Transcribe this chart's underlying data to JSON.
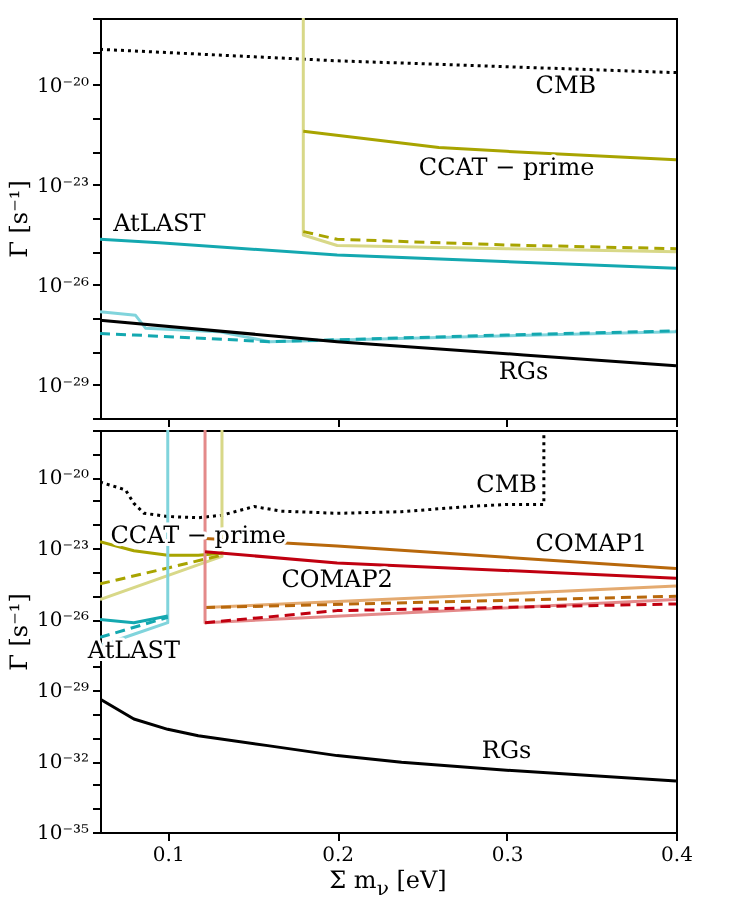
{
  "chart_data": [
    {
      "type": "line",
      "ylabel": "Γ [s⁻¹]",
      "xlim": [
        0.06,
        0.4
      ],
      "xticks": [
        0.1,
        0.2,
        0.3,
        0.4
      ],
      "ylim": [
        1e-30,
        1e-18
      ],
      "log": "y",
      "tick_labels": "y",
      "yticks": [
        {
          "value": 1e-30,
          "label": null
        },
        {
          "value": 1e-29,
          "label": "10⁻²⁹"
        },
        {
          "value": 1e-28,
          "label": null
        },
        {
          "value": 1e-27,
          "label": null
        },
        {
          "value": 1e-26,
          "label": "10⁻²⁶"
        },
        {
          "value": 1e-25,
          "label": null
        },
        {
          "value": 1e-24,
          "label": null
        },
        {
          "value": 1e-23,
          "label": "10⁻²³"
        },
        {
          "value": 1e-22,
          "label": null
        },
        {
          "value": 1e-21,
          "label": null
        },
        {
          "value": 1e-20,
          "label": "10⁻²⁰"
        },
        {
          "value": 1e-19,
          "label": null
        },
        {
          "value": 1e-18,
          "label": null
        }
      ],
      "series": [
        {
          "color": "#000000",
          "line_style": "dotted",
          "x": [
            0.06,
            0.2,
            0.335,
            0.4
          ],
          "values": [
            1.15e-19,
            5.2e-20,
            3e-20,
            2.3e-20
          ]
        },
        {
          "color": "#d8d888",
          "line_style": "solid",
          "x": [
            0.18,
            0.18,
            0.2,
            0.3,
            0.4
          ],
          "values": [
            1e-18,
            3.1e-25,
            1.5e-25,
            1.2e-25,
            9.8e-26
          ]
        },
        {
          "color": "#a8a400",
          "line_style": "dashed",
          "x": [
            0.18,
            0.2,
            0.3,
            0.4
          ],
          "values": [
            3.9e-25,
            2.3e-25,
            1.55e-25,
            1.2e-25
          ]
        },
        {
          "color": "#a8a400",
          "line_style": "solid",
          "x": [
            0.18,
            0.26,
            0.3,
            0.4
          ],
          "values": [
            4e-22,
            1.3e-22,
            1e-22,
            5.6e-23
          ]
        },
        {
          "color": "#80d4dc",
          "line_style": "solid",
          "x": [
            0.06,
            0.081,
            0.087,
            0.13,
            0.16,
            0.4
          ],
          "values": [
            1.55e-27,
            1.2e-27,
            4.9e-28,
            3.9e-28,
            1.95e-28,
            3.9e-28
          ]
        },
        {
          "color": "#14a8b0",
          "line_style": "dashed",
          "x": [
            0.06,
            0.08,
            0.16,
            0.3,
            0.4
          ],
          "values": [
            3.4e-28,
            3.1e-28,
            1.95e-28,
            3.1e-28,
            4.1e-28
          ]
        },
        {
          "color": "#14a8b0",
          "line_style": "solid",
          "x": [
            0.06,
            0.095,
            0.2,
            0.4
          ],
          "values": [
            2.3e-25,
            1.8e-25,
            7.8e-26,
            3.1e-26
          ]
        },
        {
          "color": "#000000",
          "line_style": "solid",
          "x": [
            0.06,
            0.2,
            0.31,
            0.4
          ],
          "values": [
            8.5e-28,
            1.95e-28,
            7.8e-29,
            3.7e-29
          ]
        }
      ],
      "annotations": [
        {
          "text": "CMB",
          "x": 0.335,
          "y": 3e-20
        },
        {
          "text": "CCAT − prime",
          "x": 0.3,
          "y": 1e-22
        },
        {
          "text": "AtLAST",
          "x": 0.095,
          "y": 1.8e-25
        },
        {
          "text": "RGs",
          "x": 0.31,
          "y": 7.8e-29
        }
      ]
    },
    {
      "type": "line",
      "xlabel": "Σ m$_{ν}$ [eV]",
      "ylabel": "Γ [s⁻¹]",
      "xlim": [
        0.06,
        0.4
      ],
      "xticks": [
        0.1,
        0.2,
        0.3,
        0.4
      ],
      "ylim": [
        1e-35,
        1e-18
      ],
      "log": "y",
      "yticks": [
        {
          "value": 1e-35,
          "label": "10⁻³⁵"
        },
        {
          "value": 1e-34,
          "label": null
        },
        {
          "value": 1e-33,
          "label": null
        },
        {
          "value": 1e-32,
          "label": "10⁻³²"
        },
        {
          "value": 1e-31,
          "label": null
        },
        {
          "value": 1e-30,
          "label": null
        },
        {
          "value": 1e-29,
          "label": "10⁻²⁹"
        },
        {
          "value": 1e-28,
          "label": null
        },
        {
          "value": 1e-27,
          "label": null
        },
        {
          "value": 1e-26,
          "label": "10⁻²⁶"
        },
        {
          "value": 1e-25,
          "label": null
        },
        {
          "value": 1e-24,
          "label": null
        },
        {
          "value": 1e-23,
          "label": "10⁻²³"
        },
        {
          "value": 1e-22,
          "label": null
        },
        {
          "value": 1e-21,
          "label": null
        },
        {
          "value": 1e-20,
          "label": "10⁻²⁰"
        },
        {
          "value": 1e-19,
          "label": null
        },
        {
          "value": 1e-18,
          "label": null
        }
      ],
      "series": [
        {
          "color": "#000000",
          "line_style": "dotted",
          "x": [
            0.06,
            0.075,
            0.08,
            0.086,
            0.1,
            0.118,
            0.132,
            0.151,
            0.167,
            0.2,
            0.238,
            0.277,
            0.3,
            0.322,
            0.322
          ],
          "values": [
            6.3e-21,
            2.95e-21,
            7.9e-22,
            3e-22,
            2.2e-22,
            1.95e-22,
            2.5e-22,
            5.8e-22,
            3.7e-22,
            3e-22,
            3.5e-22,
            5.8e-22,
            7.1e-22,
            7.1e-22,
            1e-18
          ]
        },
        {
          "color": "#d8d888",
          "line_style": "solid",
          "x": [
            0.06,
            0.132,
            0.132
          ],
          "values": [
            6.8e-26,
            4.5e-24,
            1e-18
          ]
        },
        {
          "color": "#a8a400",
          "line_style": "dashed",
          "x": [
            0.06,
            0.132
          ],
          "values": [
            3.1e-25,
            5.1e-24
          ]
        },
        {
          "color": "#a8a400",
          "line_style": "solid",
          "x": [
            0.06,
            0.08,
            0.1,
            0.118,
            0.132
          ],
          "values": [
            1.9e-23,
            7.8e-24,
            5.1e-24,
            5.1e-24,
            6.2e-24
          ]
        },
        {
          "color": "#80d4dc",
          "line_style": "solid",
          "x": [
            0.06,
            0.08,
            0.1,
            0.1
          ],
          "values": [
            7.4e-28,
            2.3e-27,
            7.1e-27,
            1e-18
          ]
        },
        {
          "color": "#14a8b0",
          "line_style": "dashed",
          "x": [
            0.06,
            0.1
          ],
          "values": [
            1.7e-27,
            1.2e-26
          ]
        },
        {
          "color": "#14a8b0",
          "line_style": "solid",
          "x": [
            0.06,
            0.08,
            0.1
          ],
          "values": [
            9.8e-27,
            7.1e-27,
            1.35e-26
          ]
        },
        {
          "color": "#e4aa70",
          "line_style": "solid",
          "x": [
            0.122,
            0.4
          ],
          "values": [
            3.1e-26,
            2.5e-25
          ]
        },
        {
          "color": "#b8680c",
          "line_style": "dashed",
          "x": [
            0.122,
            0.4
          ],
          "values": [
            3.1e-26,
            9.3e-26
          ]
        },
        {
          "color": "#b8680c",
          "line_style": "solid",
          "x": [
            0.122,
            0.2,
            0.35,
            0.4
          ],
          "values": [
            2.6e-23,
            1.23e-23,
            2.4e-24,
            1.4e-24
          ]
        },
        {
          "color": "#e48a8a",
          "line_style": "solid",
          "x": [
            0.122,
            0.122,
            0.4
          ],
          "values": [
            1e-18,
            7.1e-27,
            6.8e-26
          ]
        },
        {
          "color": "#c00010",
          "line_style": "dashed",
          "x": [
            0.122,
            0.2,
            0.4
          ],
          "values": [
            7.1e-27,
            2.3e-26,
            4.4e-26
          ]
        },
        {
          "color": "#c00010",
          "line_style": "solid",
          "x": [
            0.122,
            0.2,
            0.4
          ],
          "values": [
            7.1e-24,
            2.4e-24,
            5.4e-25
          ]
        },
        {
          "color": "#000000",
          "line_style": "solid",
          "x": [
            0.06,
            0.08,
            0.1,
            0.118,
            0.159,
            0.2,
            0.238,
            0.3,
            0.4
          ],
          "values": [
            4.2e-30,
            6e-31,
            2.2e-31,
            1.17e-31,
            4.5e-32,
            1.7e-32,
            8.9e-33,
            4.1e-33,
            1.45e-33
          ]
        }
      ],
      "annotations": [
        {
          "text": "CCAT − prime",
          "x": 0.118,
          "y": 5.1e-24
        },
        {
          "text": "CMB",
          "x": 0.3,
          "y": 7.1e-22
        },
        {
          "text": "COMAP2",
          "x": 0.2,
          "y": 2.4e-24
        },
        {
          "text": "COMAP1",
          "x": 0.35,
          "y": 2.4e-24
        },
        {
          "text": "AtLAST",
          "x": 0.08,
          "y": 2.3e-27
        },
        {
          "text": "RGs",
          "x": 0.3,
          "y": 4.1e-33
        }
      ]
    }
  ]
}
